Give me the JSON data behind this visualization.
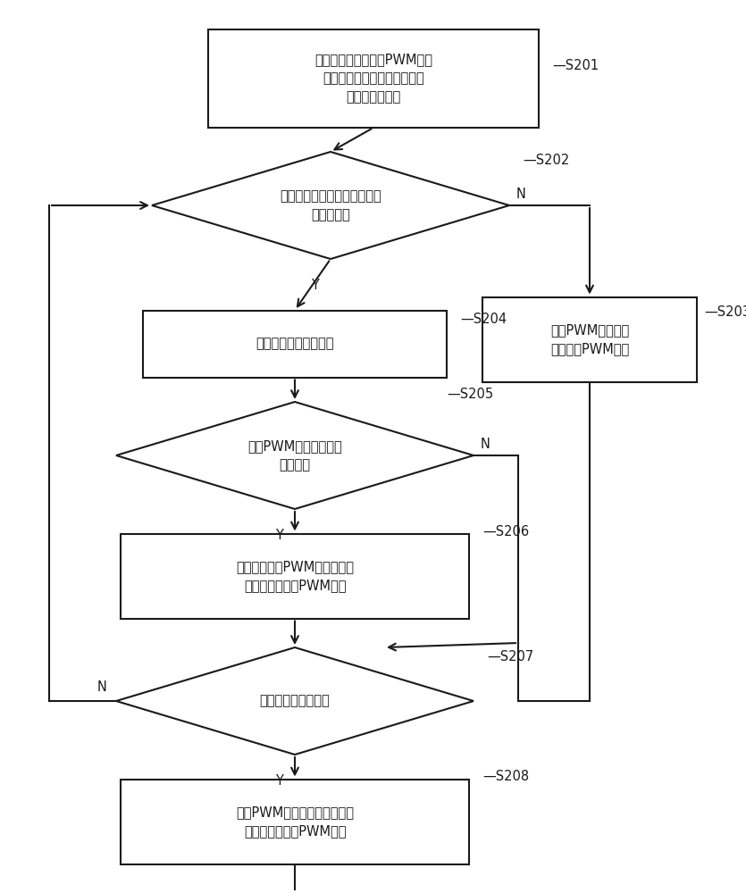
{
  "bg_color": "#ffffff",
  "line_color": "#1a1a1a",
  "text_color": "#1a1a1a",
  "font_size": 10.5,
  "label_font_size": 10.5,
  "s201_label": "获取机床运动信息和PWM信号\n配置信息，机床运动信息包括\n标志位和模拟量",
  "s202_label": "通过标志位是否有效判断机床\n的运动状态",
  "s203_label": "根据PWM信号配置\n信息生成PWM信号",
  "s204_label": "将模拟量转换为数字量",
  "s205_label": "判断PWM信号配置信息\n是否变化",
  "s206_label": "根据变化后的PWM信号配置信\n息和数字量生成PWM信号",
  "s207_label": "判断数字量是否变化",
  "s208_label": "根据PWM信号配置信息和变化\n后的数字量生成PWM信号",
  "figsize": [
    8.35,
    10.0
  ],
  "dpi": 100
}
